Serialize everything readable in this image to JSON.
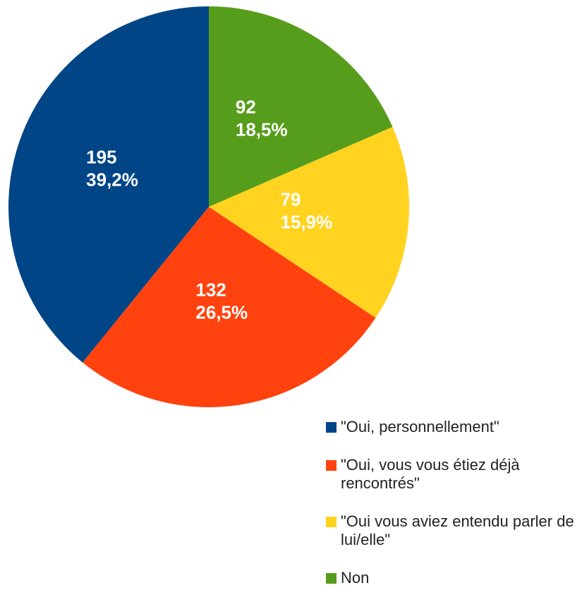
{
  "chart_data": {
    "type": "pie",
    "categories": [
      "\"Oui, personnellement\"",
      "\"Oui, vous vous étiez déjà rencontrés\"",
      "\"Oui vous aviez entendu parler de lui/elle\"",
      "Non"
    ],
    "values": [
      195,
      132,
      79,
      92
    ],
    "percentages": [
      39.2,
      26.5,
      15.9,
      18.5
    ],
    "percentage_labels": [
      "39,2%",
      "26,5%",
      "15,9%",
      "18,5%"
    ],
    "colors": [
      "#004586",
      "#ff420e",
      "#ffd320",
      "#579d1c"
    ]
  }
}
